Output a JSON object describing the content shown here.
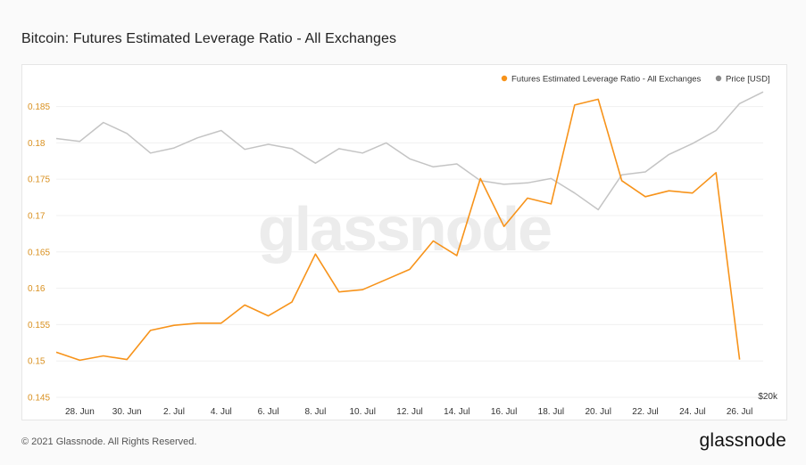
{
  "title": "Bitcoin: Futures Estimated Leverage Ratio - All Exchanges",
  "footer": "© 2021 Glassnode. All Rights Reserved.",
  "brand": "glassnode",
  "watermark": "glassnode",
  "chart_data": {
    "type": "line",
    "legend_position": "top-right",
    "grid": "horizontal",
    "x_ticks": [
      "28. Jun",
      "30. Jun",
      "2. Jul",
      "4. Jul",
      "6. Jul",
      "8. Jul",
      "10. Jul",
      "12. Jul",
      "14. Jul",
      "16. Jul",
      "18. Jul",
      "20. Jul",
      "22. Jul",
      "24. Jul",
      "26. Jul"
    ],
    "x": [
      "2021-06-27",
      "2021-06-28",
      "2021-06-29",
      "2021-06-30",
      "2021-07-01",
      "2021-07-02",
      "2021-07-03",
      "2021-07-04",
      "2021-07-05",
      "2021-07-06",
      "2021-07-07",
      "2021-07-08",
      "2021-07-09",
      "2021-07-10",
      "2021-07-11",
      "2021-07-12",
      "2021-07-13",
      "2021-07-14",
      "2021-07-15",
      "2021-07-16",
      "2021-07-17",
      "2021-07-18",
      "2021-07-19",
      "2021-07-20",
      "2021-07-21",
      "2021-07-22",
      "2021-07-23",
      "2021-07-24",
      "2021-07-25",
      "2021-07-26",
      "2021-07-27"
    ],
    "y_ticks": [
      "0.145",
      "0.15",
      "0.155",
      "0.16",
      "0.165",
      "0.17",
      "0.175",
      "0.18",
      "0.185"
    ],
    "ylim": [
      0.145,
      0.1885
    ],
    "price_axis_label": "$20k",
    "series": [
      {
        "name": "Futures Estimated Leverage Ratio - All Exchanges",
        "color": "#f7931a",
        "values": [
          0.1512,
          0.1501,
          0.1507,
          0.1502,
          0.1542,
          0.1549,
          0.1552,
          0.1552,
          0.1577,
          0.1562,
          0.1581,
          0.1647,
          0.1595,
          0.1598,
          0.1612,
          0.1626,
          0.1665,
          0.1645,
          0.1751,
          0.1685,
          0.1724,
          0.1716,
          0.1852,
          0.186,
          0.1748,
          0.1726,
          0.1734,
          0.1731,
          0.1759,
          0.1502,
          null
        ]
      },
      {
        "name": "Price [USD]",
        "color": "#c4c4c4",
        "legend_color": "#8a8a8a",
        "values": [
          0.1806,
          0.1802,
          0.1828,
          0.1813,
          0.1786,
          0.1793,
          0.1807,
          0.1817,
          0.1791,
          0.1798,
          0.1792,
          0.1772,
          0.1792,
          0.1786,
          0.18,
          0.1778,
          0.1767,
          0.1771,
          0.1748,
          0.1743,
          0.1745,
          0.1751,
          0.1731,
          0.1708,
          0.1756,
          0.176,
          0.1784,
          0.1799,
          0.1817,
          0.1854,
          0.187
        ]
      }
    ]
  }
}
